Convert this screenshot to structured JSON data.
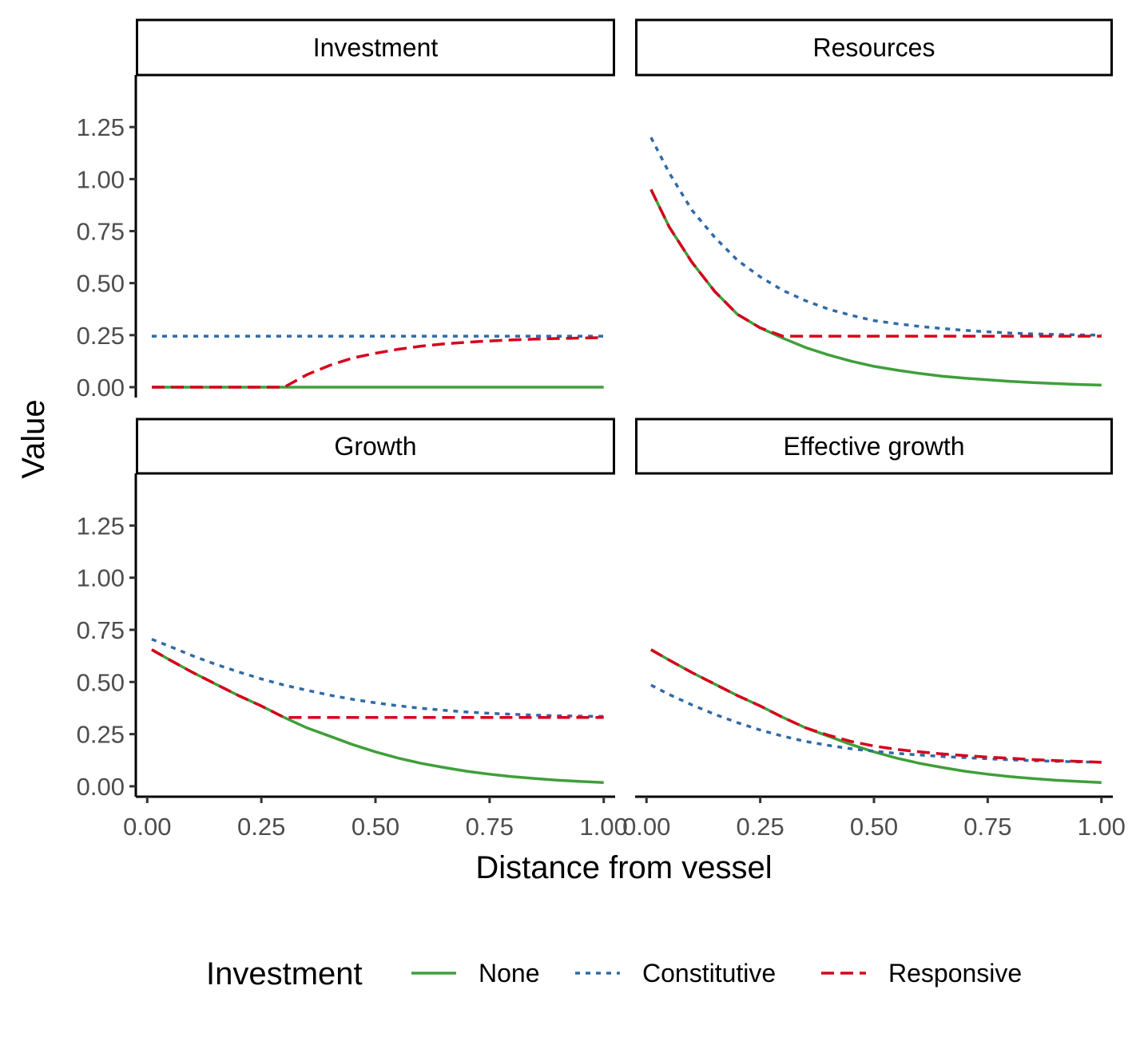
{
  "colors": {
    "None": "#3f9f3a",
    "Constitutive": "#2f6aa6",
    "Responsive": "#d6001c"
  },
  "chart_data": {
    "type": "line",
    "xlabel": "Distance from vessel",
    "ylabel": "Value",
    "xlim": [
      -0.025,
      1.025
    ],
    "ylim": [
      -0.05,
      1.5
    ],
    "x_ticks": [
      "0.00",
      "0.25",
      "0.50",
      "0.75",
      "1.00"
    ],
    "y_ticks": [
      "0.00",
      "0.25",
      "0.50",
      "0.75",
      "1.00",
      "1.25"
    ],
    "legend": {
      "title": "Investment",
      "position": "bottom",
      "entries": [
        {
          "name": "None",
          "linetype": "solid"
        },
        {
          "name": "Constitutive",
          "linetype": "dotted"
        },
        {
          "name": "Responsive",
          "linetype": "dashed"
        }
      ]
    },
    "x": [
      0.01,
      0.05,
      0.1,
      0.15,
      0.2,
      0.25,
      0.3,
      0.35,
      0.4,
      0.45,
      0.5,
      0.55,
      0.6,
      0.65,
      0.7,
      0.75,
      0.8,
      0.85,
      0.9,
      0.95,
      1.0
    ],
    "panels": [
      {
        "title": "Investment",
        "series": [
          {
            "name": "None",
            "values": [
              0,
              0,
              0,
              0,
              0,
              0,
              0,
              0,
              0,
              0,
              0,
              0,
              0,
              0,
              0,
              0,
              0,
              0,
              0,
              0,
              0
            ]
          },
          {
            "name": "Constitutive",
            "values": [
              0.245,
              0.245,
              0.245,
              0.245,
              0.245,
              0.245,
              0.245,
              0.245,
              0.245,
              0.245,
              0.245,
              0.245,
              0.245,
              0.245,
              0.245,
              0.245,
              0.245,
              0.245,
              0.245,
              0.245,
              0.245
            ]
          },
          {
            "name": "Responsive",
            "values": [
              0,
              0,
              0,
              0,
              0,
              0,
              0,
              0.06,
              0.105,
              0.14,
              0.163,
              0.182,
              0.197,
              0.208,
              0.216,
              0.222,
              0.227,
              0.231,
              0.234,
              0.236,
              0.238
            ]
          }
        ]
      },
      {
        "title": "Resources",
        "series": [
          {
            "name": "None",
            "values": [
              0.95,
              0.77,
              0.6,
              0.46,
              0.35,
              0.285,
              0.235,
              0.19,
              0.155,
              0.125,
              0.1,
              0.082,
              0.066,
              0.053,
              0.043,
              0.035,
              0.028,
              0.022,
              0.017,
              0.013,
              0.01
            ]
          },
          {
            "name": "Constitutive",
            "values": [
              1.2,
              1.03,
              0.85,
              0.72,
              0.61,
              0.53,
              0.465,
              0.415,
              0.375,
              0.345,
              0.32,
              0.305,
              0.292,
              0.282,
              0.273,
              0.266,
              0.26,
              0.256,
              0.253,
              0.251,
              0.25
            ]
          },
          {
            "name": "Responsive",
            "values": [
              0.95,
              0.77,
              0.6,
              0.46,
              0.35,
              0.285,
              0.245,
              0.245,
              0.245,
              0.245,
              0.245,
              0.245,
              0.245,
              0.245,
              0.245,
              0.245,
              0.245,
              0.245,
              0.245,
              0.245,
              0.245
            ]
          }
        ]
      },
      {
        "title": "Growth",
        "series": [
          {
            "name": "None",
            "values": [
              0.655,
              0.605,
              0.545,
              0.49,
              0.435,
              0.385,
              0.33,
              0.28,
              0.24,
              0.2,
              0.165,
              0.135,
              0.11,
              0.09,
              0.072,
              0.058,
              0.046,
              0.037,
              0.029,
              0.023,
              0.018
            ]
          },
          {
            "name": "Constitutive",
            "values": [
              0.705,
              0.67,
              0.625,
              0.585,
              0.548,
              0.515,
              0.485,
              0.46,
              0.437,
              0.417,
              0.4,
              0.386,
              0.374,
              0.364,
              0.356,
              0.35,
              0.345,
              0.341,
              0.338,
              0.336,
              0.335
            ]
          },
          {
            "name": "Responsive",
            "values": [
              0.655,
              0.605,
              0.545,
              0.49,
              0.435,
              0.385,
              0.33,
              0.33,
              0.33,
              0.33,
              0.33,
              0.33,
              0.33,
              0.33,
              0.33,
              0.33,
              0.33,
              0.33,
              0.33,
              0.33,
              0.33
            ]
          }
        ]
      },
      {
        "title": "Effective growth",
        "series": [
          {
            "name": "None",
            "values": [
              0.655,
              0.605,
              0.545,
              0.49,
              0.435,
              0.385,
              0.33,
              0.28,
              0.24,
              0.2,
              0.165,
              0.135,
              0.11,
              0.09,
              0.072,
              0.058,
              0.046,
              0.037,
              0.029,
              0.023,
              0.018
            ]
          },
          {
            "name": "Constitutive",
            "values": [
              0.485,
              0.44,
              0.39,
              0.345,
              0.305,
              0.27,
              0.24,
              0.215,
              0.196,
              0.18,
              0.168,
              0.158,
              0.15,
              0.143,
              0.137,
              0.132,
              0.127,
              0.123,
              0.12,
              0.117,
              0.115
            ]
          },
          {
            "name": "Responsive",
            "values": [
              0.655,
              0.605,
              0.545,
              0.49,
              0.435,
              0.385,
              0.33,
              0.28,
              0.245,
              0.215,
              0.193,
              0.177,
              0.165,
              0.155,
              0.147,
              0.14,
              0.134,
              0.128,
              0.123,
              0.119,
              0.115
            ]
          }
        ]
      }
    ]
  }
}
